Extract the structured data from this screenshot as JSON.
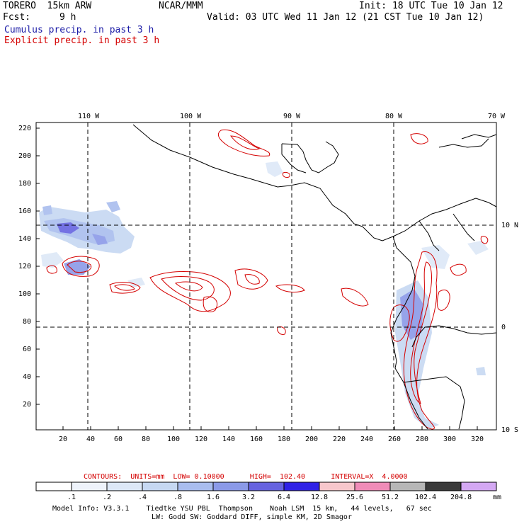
{
  "header": {
    "model_name": "TORERO  15km ARW",
    "org": "NCAR/MMM",
    "init": "Init: 18 UTC Tue 10 Jan 12",
    "fcst_label": "Fcst:",
    "fcst_value": "9 h",
    "valid": "Valid: 03 UTC Wed 11 Jan 12 (21 CST Tue 10 Jan 12)",
    "field1": "Cumulus precip. in past 3 h",
    "field2": "Explicit precip. in past 3 h"
  },
  "colors": {
    "field1": "#1a1aa6",
    "field2": "#d40000"
  },
  "map": {
    "top_lon_labels": [
      "110 W",
      "100 W",
      "90 W",
      "80 W",
      "70 W"
    ],
    "right_lat_labels": [
      "10 N",
      "0",
      "10 S"
    ],
    "y_ticks": [
      "220",
      "200",
      "180",
      "160",
      "140",
      "120",
      "100",
      "80",
      "60",
      "40",
      "20"
    ],
    "x_ticks": [
      "20",
      "40",
      "60",
      "80",
      "100",
      "120",
      "140",
      "160",
      "180",
      "200",
      "220",
      "240",
      "260",
      "280",
      "300",
      "320"
    ]
  },
  "contour_info": {
    "text": "CONTOURS:  UNITS=mm  LOW= 0.10000      HIGH=  102.40      INTERVAL=X  4.0000"
  },
  "legend": {
    "labels": [
      ".1",
      ".2",
      ".4",
      ".8",
      "1.6",
      "3.2",
      "6.4",
      "12.8",
      "25.6",
      "51.2",
      "102.4",
      "204.8"
    ],
    "unit": "mm",
    "colors": [
      "#ffffff",
      "#eef3fb",
      "#dde8f7",
      "#c6d8f2",
      "#a9bdee",
      "#8b9ae8",
      "#6663e0",
      "#2f22e6",
      "#f7c7cc",
      "#f08cb8",
      "#b7b7b7",
      "#3a3a3a",
      "#d4a8f3"
    ]
  },
  "footer": {
    "line1": "Model Info: V3.3.1    Tiedtke YSU PBL  Thompson    Noah LSM  15 km,   44 levels,   67 sec",
    "line2": "LW: Godd SW: Goddard DIFF, simple KM, 2D Smagor"
  }
}
